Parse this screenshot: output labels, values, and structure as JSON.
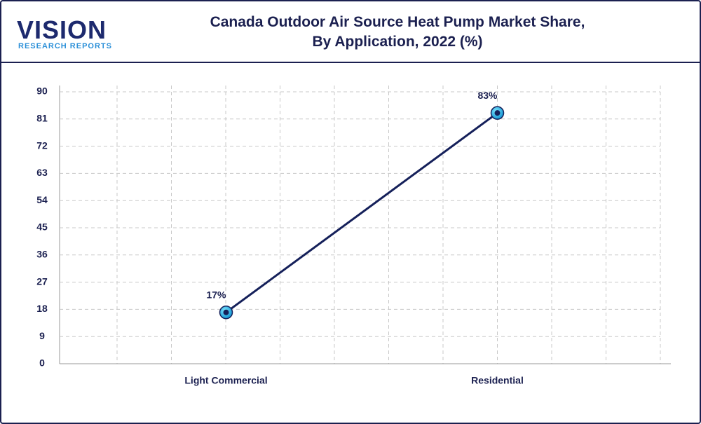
{
  "logo": {
    "name": "VISION",
    "tagline": "RESEARCH REPORTS"
  },
  "chart_data": {
    "type": "line",
    "title": "Canada Outdoor Air Source Heat Pump Market Share, By Application, 2022 (%)",
    "categories": [
      "Light Commercial",
      "Residential"
    ],
    "values": [
      17,
      83
    ],
    "value_labels": [
      "17%",
      "83%"
    ],
    "color": "#15205a",
    "ylim": [
      0,
      90
    ],
    "yticks": [
      0,
      9,
      18,
      27,
      36,
      45,
      54,
      63,
      72,
      81,
      90
    ],
    "grid": true
  }
}
